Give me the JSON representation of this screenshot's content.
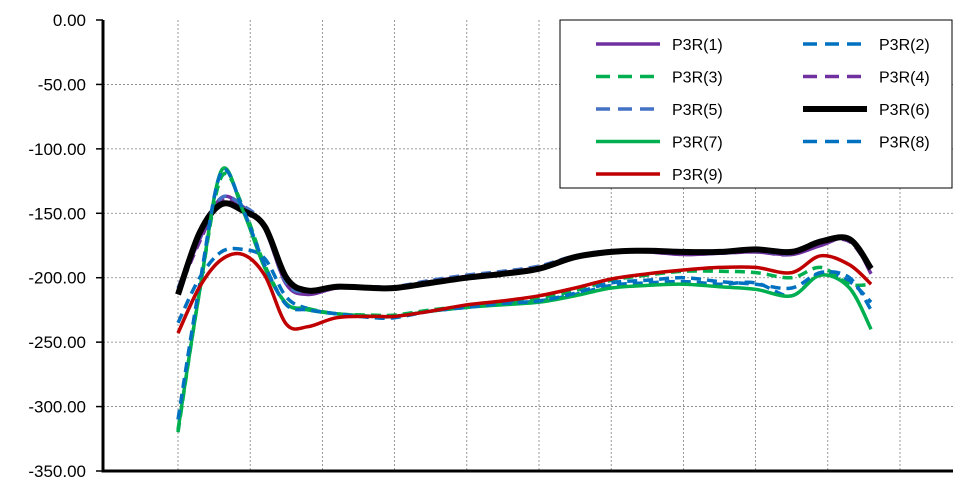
{
  "chart_data": {
    "type": "line",
    "title": "",
    "xlabel": "",
    "ylabel": "",
    "ylim": [
      -350,
      0
    ],
    "y_ticks": [
      "0.00",
      "-50.00",
      "-100.00",
      "-150.00",
      "-200.00",
      "-250.00",
      "-300.00",
      "-350.00"
    ],
    "x_range": [
      0,
      10.5
    ],
    "x_gridlines": [
      1,
      2,
      3,
      4,
      5,
      6,
      7,
      8,
      9,
      10
    ],
    "grid": true,
    "legend_position": "top-right",
    "legend_columns": 2,
    "series": [
      {
        "name": "P3R(1)",
        "color": "#7030a0",
        "dash": "solid",
        "width": 3.5,
        "x": [
          0,
          0.3,
          0.6,
          0.9,
          1.2,
          1.5,
          1.8,
          2.2,
          2.7,
          3,
          3.5,
          4,
          4.5,
          5,
          5.5,
          6,
          6.5,
          7,
          7.5,
          8,
          8.5,
          8.9,
          9.3,
          9.6
        ],
        "y": [
          -210,
          -170,
          -138,
          -145,
          -162,
          -205,
          -213,
          -208,
          -208,
          -208,
          -203,
          -199,
          -196,
          -192,
          -184,
          -180,
          -180,
          -182,
          -181,
          -180,
          -182,
          -175,
          -170,
          -197
        ]
      },
      {
        "name": "P3R(2)",
        "color": "#0070c0",
        "dash": "dash",
        "width": 3.5,
        "x": [
          0,
          0.3,
          0.6,
          0.9,
          1.2,
          1.5,
          1.8,
          2.2,
          2.7,
          3,
          3.5,
          4,
          4.5,
          5,
          5.5,
          6,
          6.5,
          7,
          7.5,
          8,
          8.5,
          8.9,
          9.3,
          9.6
        ],
        "y": [
          -235,
          -200,
          -180,
          -178,
          -185,
          -215,
          -224,
          -228,
          -230,
          -230,
          -226,
          -223,
          -220,
          -218,
          -213,
          -206,
          -204,
          -203,
          -205,
          -204,
          -214,
          -196,
          -203,
          -219
        ]
      },
      {
        "name": "P3R(3)",
        "color": "#00b050",
        "dash": "dash",
        "width": 3.5,
        "x": [
          0,
          0.3,
          0.6,
          0.9,
          1.2,
          1.5,
          1.8,
          2.2,
          2.7,
          3,
          3.5,
          4,
          4.5,
          5,
          5.5,
          6,
          6.5,
          7,
          7.5,
          8,
          8.5,
          8.9,
          9.3,
          9.6
        ],
        "y": [
          -320,
          -210,
          -122,
          -145,
          -190,
          -220,
          -224,
          -228,
          -229,
          -229,
          -225,
          -222,
          -220,
          -216,
          -210,
          -202,
          -198,
          -195,
          -195,
          -196,
          -200,
          -192,
          -205,
          -205
        ]
      },
      {
        "name": "P3R(4)",
        "color": "#7030a0",
        "dash": "dash",
        "width": 3.5,
        "x": [
          0,
          0.3,
          0.6,
          0.9,
          1.2,
          1.5,
          1.8,
          2.2,
          2.7,
          3,
          3.5,
          4,
          4.5,
          5,
          5.5,
          6,
          6.5,
          7,
          7.5,
          8,
          8.5,
          8.9,
          9.3,
          9.6
        ],
        "y": [
          -212,
          -172,
          -140,
          -146,
          -162,
          -205,
          -212,
          -208,
          -208,
          -208,
          -203,
          -199,
          -196,
          -192,
          -184,
          -180,
          -180,
          -182,
          -181,
          -180,
          -182,
          -172,
          -172,
          -195
        ]
      },
      {
        "name": "P3R(5)",
        "color": "#4472c4",
        "dash": "dash",
        "width": 3.5,
        "x": [
          0,
          0.3,
          0.6,
          0.9,
          1.2,
          1.5,
          1.8,
          2.2,
          2.7,
          3,
          3.5,
          4,
          4.5,
          5,
          5.5,
          6,
          6.5,
          7,
          7.5,
          8,
          8.5,
          8.9,
          9.3,
          9.6
        ],
        "y": [
          -208,
          -168,
          -138,
          -144,
          -160,
          -204,
          -211,
          -207,
          -207,
          -207,
          -202,
          -198,
          -195,
          -191,
          -183,
          -179,
          -179,
          -181,
          -180,
          -179,
          -181,
          -171,
          -171,
          -193
        ]
      },
      {
        "name": "P3R(6)",
        "color": "#000000",
        "dash": "solid",
        "width": 6,
        "x": [
          0,
          0.3,
          0.6,
          0.9,
          1.2,
          1.5,
          1.8,
          2.2,
          2.7,
          3,
          3.5,
          4,
          4.5,
          5,
          5.5,
          6,
          6.5,
          7,
          7.5,
          8,
          8.5,
          8.9,
          9.3,
          9.6
        ],
        "y": [
          -213,
          -165,
          -143,
          -148,
          -160,
          -200,
          -210,
          -207,
          -208,
          -208,
          -204,
          -200,
          -197,
          -193,
          -184,
          -180,
          -179,
          -180,
          -180,
          -178,
          -180,
          -172,
          -170,
          -193
        ]
      },
      {
        "name": "P3R(7)",
        "color": "#00b050",
        "dash": "solid",
        "width": 3.5,
        "x": [
          0,
          0.3,
          0.6,
          0.9,
          1.2,
          1.5,
          1.8,
          2.2,
          2.7,
          3,
          3.5,
          4,
          4.5,
          5,
          5.5,
          6,
          6.5,
          7,
          7.5,
          8,
          8.5,
          8.9,
          9.3,
          9.6
        ],
        "y": [
          -318,
          -210,
          -117,
          -148,
          -192,
          -220,
          -225,
          -228,
          -230,
          -230,
          -226,
          -223,
          -221,
          -219,
          -214,
          -208,
          -206,
          -205,
          -207,
          -209,
          -214,
          -198,
          -208,
          -240
        ]
      },
      {
        "name": "P3R(8)",
        "color": "#0070c0",
        "dash": "dash",
        "width": 3.5,
        "x": [
          0,
          0.3,
          0.6,
          0.9,
          1.2,
          1.5,
          1.8,
          2.2,
          2.7,
          3,
          3.5,
          4,
          4.5,
          5,
          5.5,
          6,
          6.5,
          7,
          7.5,
          8,
          8.5,
          8.9,
          9.3,
          9.6
        ],
        "y": [
          -310,
          -205,
          -118,
          -147,
          -190,
          -221,
          -225,
          -228,
          -231,
          -231,
          -226,
          -223,
          -220,
          -218,
          -212,
          -204,
          -202,
          -200,
          -203,
          -205,
          -208,
          -196,
          -200,
          -225
        ]
      },
      {
        "name": "P3R(9)",
        "color": "#c00000",
        "dash": "solid",
        "width": 3.5,
        "x": [
          0,
          0.3,
          0.6,
          0.9,
          1.2,
          1.5,
          1.8,
          2.2,
          2.7,
          3,
          3.5,
          4,
          4.5,
          5,
          5.5,
          6,
          6.5,
          7,
          7.5,
          8,
          8.5,
          8.9,
          9.3,
          9.6
        ],
        "y": [
          -243,
          -207,
          -186,
          -182,
          -198,
          -236,
          -238,
          -231,
          -230,
          -230,
          -226,
          -221,
          -218,
          -214,
          -208,
          -201,
          -197,
          -194,
          -192,
          -192,
          -196,
          -183,
          -190,
          -205
        ]
      }
    ]
  }
}
